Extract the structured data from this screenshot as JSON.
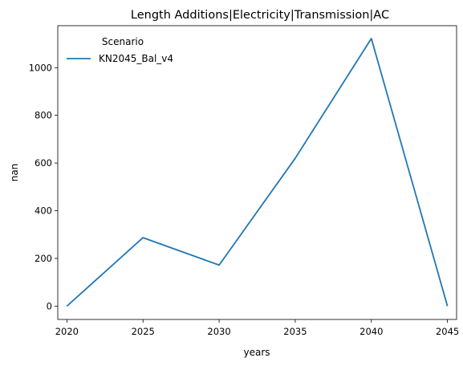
{
  "chart_data": {
    "type": "line",
    "title": "Length Additions|Electricity|Transmission|AC",
    "xlabel": "years",
    "ylabel": "nan",
    "x": [
      2020,
      2025,
      2030,
      2035,
      2040,
      2045
    ],
    "xticks": [
      2020,
      2025,
      2030,
      2035,
      2040,
      2045
    ],
    "yticks": [
      0,
      200,
      400,
      600,
      800,
      1000
    ],
    "xlim": [
      2019.4,
      2045.6
    ],
    "ylim": [
      -56,
      1176
    ],
    "grid": false,
    "legend": {
      "title": "Scenario",
      "placement": "top-left"
    },
    "series": [
      {
        "name": "KN2045_Bal_v4",
        "color": "#1f77b4",
        "values": [
          0,
          287,
          172,
          620,
          1122,
          0
        ]
      }
    ]
  }
}
